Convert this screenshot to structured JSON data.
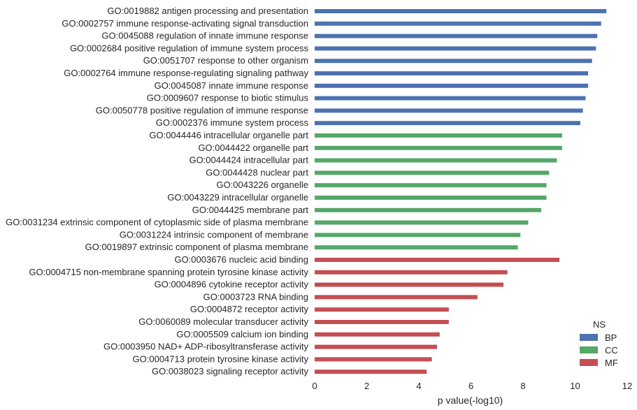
{
  "chart_data": {
    "type": "bar",
    "orientation": "horizontal",
    "xlabel": "p value(-log10)",
    "ylabel": "",
    "xlim": [
      0,
      12
    ],
    "xticks": [
      "0",
      "2",
      "4",
      "6",
      "8",
      "10",
      "12"
    ],
    "grid": false,
    "legend": {
      "title": "NS",
      "placement": "bottom-right",
      "entries": [
        {
          "name": "BP",
          "color": "#4c72b0"
        },
        {
          "name": "CC",
          "color": "#55a868"
        },
        {
          "name": "MF",
          "color": "#c44e52"
        }
      ]
    },
    "bars": [
      {
        "label": "GO:0019882 antigen processing and presentation",
        "value": 11.2,
        "ns": "BP"
      },
      {
        "label": "GO:0002757 immune response-activating signal transduction",
        "value": 11.0,
        "ns": "BP"
      },
      {
        "label": "GO:0045088 regulation of innate immune response",
        "value": 10.85,
        "ns": "BP"
      },
      {
        "label": "GO:0002684 positive regulation of immune system process",
        "value": 10.8,
        "ns": "BP"
      },
      {
        "label": "GO:0051707 response to other organism",
        "value": 10.65,
        "ns": "BP"
      },
      {
        "label": "GO:0002764 immune response-regulating signaling pathway",
        "value": 10.5,
        "ns": "BP"
      },
      {
        "label": "GO:0045087 innate immune response",
        "value": 10.5,
        "ns": "BP"
      },
      {
        "label": "GO:0009607 response to biotic stimulus",
        "value": 10.4,
        "ns": "BP"
      },
      {
        "label": "GO:0050778 positive regulation of immune response",
        "value": 10.3,
        "ns": "BP"
      },
      {
        "label": "GO:0002376 immune system process",
        "value": 10.2,
        "ns": "BP"
      },
      {
        "label": "GO:0044446 intracellular organelle part",
        "value": 9.5,
        "ns": "CC"
      },
      {
        "label": "GO:0044422 organelle part",
        "value": 9.5,
        "ns": "CC"
      },
      {
        "label": "GO:0044424 intracellular part",
        "value": 9.3,
        "ns": "CC"
      },
      {
        "label": "GO:0044428 nuclear part",
        "value": 9.0,
        "ns": "CC"
      },
      {
        "label": "GO:0043226 organelle",
        "value": 8.9,
        "ns": "CC"
      },
      {
        "label": "GO:0043229 intracellular organelle",
        "value": 8.9,
        "ns": "CC"
      },
      {
        "label": "GO:0044425 membrane part",
        "value": 8.7,
        "ns": "CC"
      },
      {
        "label": "GO:0031234 extrinsic component of cytoplasmic side of plasma membrane",
        "value": 8.2,
        "ns": "CC"
      },
      {
        "label": "GO:0031224 intrinsic component of membrane",
        "value": 7.9,
        "ns": "CC"
      },
      {
        "label": "GO:0019897 extrinsic component of plasma membrane",
        "value": 7.8,
        "ns": "CC"
      },
      {
        "label": "GO:0003676 nucleic acid binding",
        "value": 9.4,
        "ns": "MF"
      },
      {
        "label": "GO:0004715 non-membrane spanning protein tyrosine kinase activity",
        "value": 7.4,
        "ns": "MF"
      },
      {
        "label": "GO:0004896 cytokine receptor activity",
        "value": 7.25,
        "ns": "MF"
      },
      {
        "label": "GO:0003723 RNA binding",
        "value": 6.25,
        "ns": "MF"
      },
      {
        "label": "GO:0004872 receptor activity",
        "value": 5.15,
        "ns": "MF"
      },
      {
        "label": "GO:0060089 molecular transducer activity",
        "value": 5.15,
        "ns": "MF"
      },
      {
        "label": "GO:0005509 calcium ion binding",
        "value": 4.8,
        "ns": "MF"
      },
      {
        "label": "GO:0003950 NAD+ ADP-ribosyltransferase activity",
        "value": 4.7,
        "ns": "MF"
      },
      {
        "label": "GO:0004713 protein tyrosine kinase activity",
        "value": 4.5,
        "ns": "MF"
      },
      {
        "label": "GO:0038023 signaling receptor activity",
        "value": 4.3,
        "ns": "MF"
      }
    ]
  }
}
